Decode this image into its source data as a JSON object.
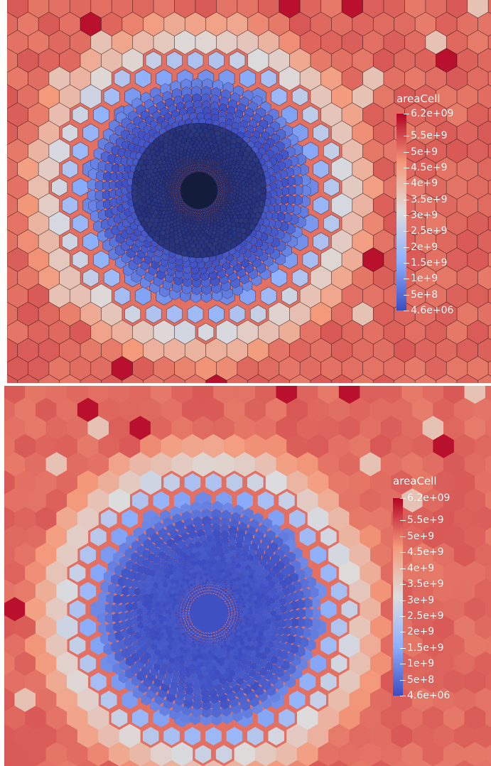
{
  "colorbar": {
    "title": "areaCell",
    "max_label": "6.2e+09",
    "min_label": "4.6e+06",
    "tick_labels": [
      "5.5e+9",
      "5e+9",
      "4.5e+9",
      "4e+9",
      "3.5e+9",
      "3e+9",
      "2.5e+9",
      "2e+9",
      "1.5e+9",
      "1e+9",
      "5e+8"
    ],
    "tick_values": [
      5500000000.0,
      5000000000.0,
      4500000000.0,
      4000000000.0,
      3500000000.0,
      3000000000.0,
      2500000000.0,
      2000000000.0,
      1500000000.0,
      1000000000.0,
      500000000.0
    ],
    "range": [
      4600000.0,
      6200000000.0
    ],
    "colormap": [
      "#3b4cc0",
      "#8db0fe",
      "#dddcdc",
      "#f49a7b",
      "#b40426"
    ]
  },
  "panels": [
    {
      "name": "mesh-with-edges"
    },
    {
      "name": "mesh-smooth"
    }
  ]
}
